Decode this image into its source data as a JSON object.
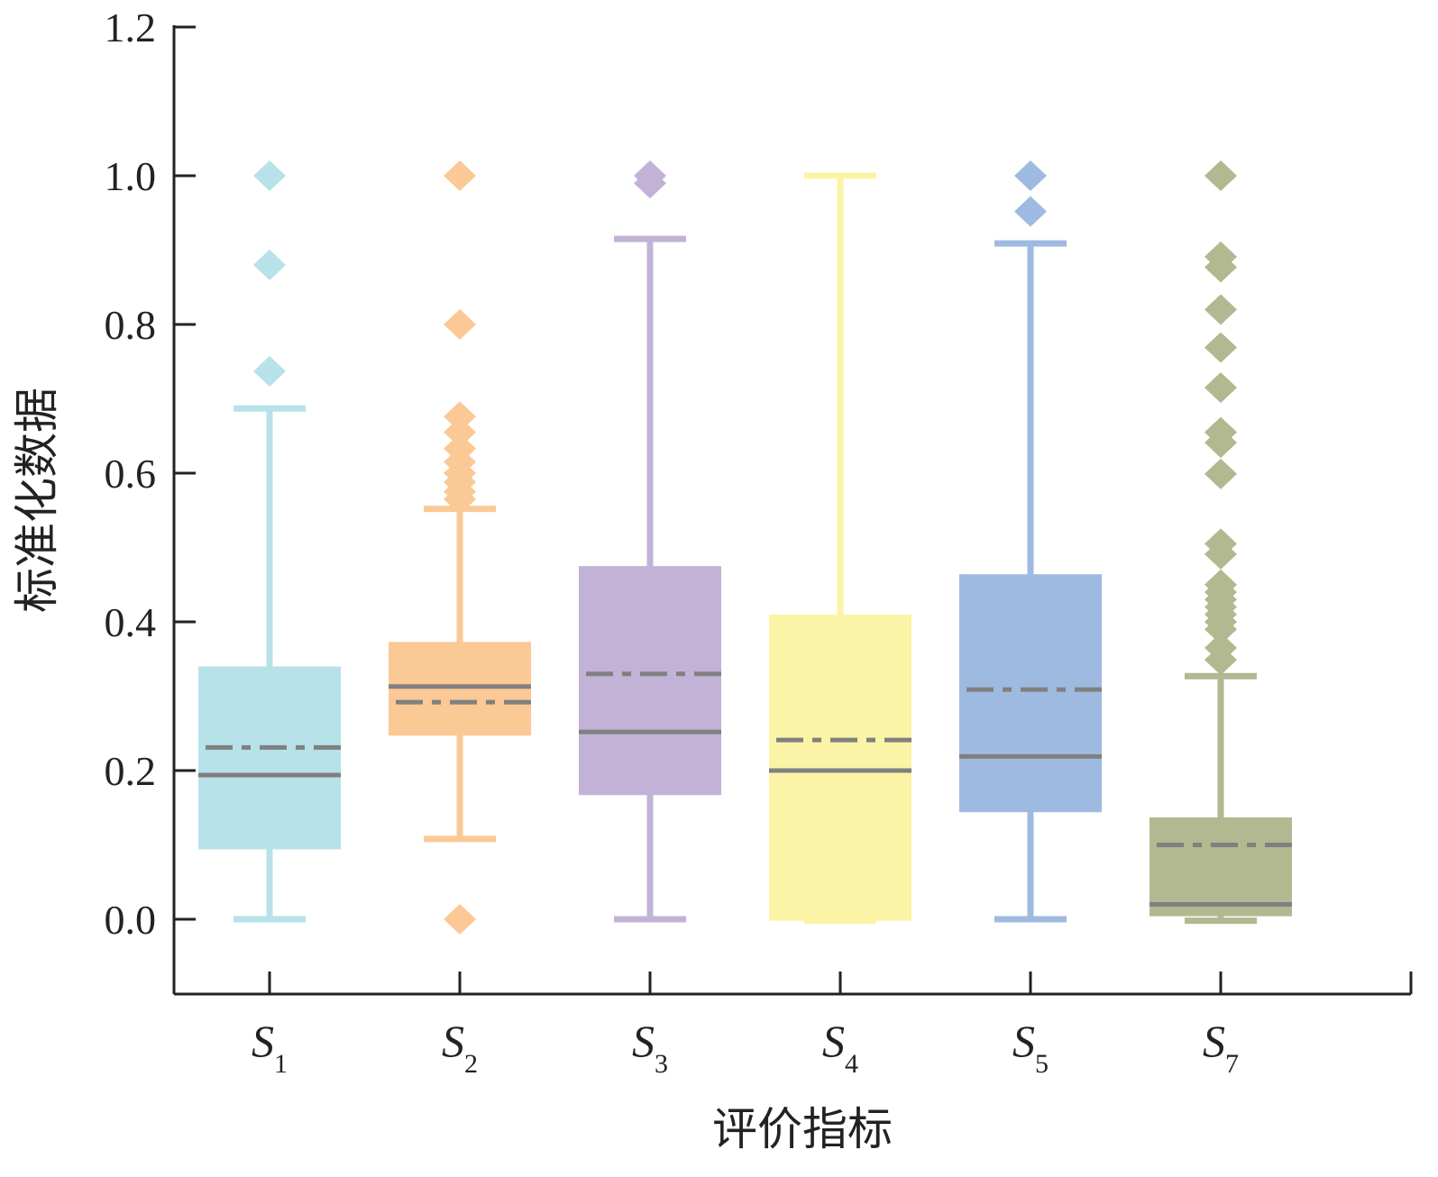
{
  "chart_data": {
    "type": "box",
    "title": "",
    "xlabel": "评价指标",
    "ylabel": "标准化数据",
    "ylim": [
      -0.1,
      1.2
    ],
    "yticks": [
      "0.0",
      "0.2",
      "0.4",
      "0.6",
      "0.8",
      "1.0",
      "1.2"
    ],
    "ytick_values": [
      0,
      0.2,
      0.4,
      0.6,
      0.8,
      1.0,
      1.2
    ],
    "grid": false,
    "median_line_color": "#808080",
    "series": [
      {
        "name": "S",
        "sub": "1",
        "color": "#b7e2e9",
        "whisker_low": 0.0,
        "q1": 0.094,
        "median": 0.194,
        "mean": 0.231,
        "q3": 0.34,
        "whisker_high": 0.687,
        "outliers": [
          1.0,
          0.88,
          0.737
        ]
      },
      {
        "name": "S",
        "sub": "2",
        "color": "#fbc995",
        "whisker_low": 0.108,
        "q1": 0.247,
        "median": 0.313,
        "mean": 0.292,
        "q3": 0.373,
        "whisker_high": 0.552,
        "outliers": [
          0.0,
          1.0,
          0.8,
          0.676,
          0.655,
          0.633,
          0.615,
          0.6,
          0.588,
          0.575,
          0.565
        ]
      },
      {
        "name": "S",
        "sub": "3",
        "color": "#c2b3d6",
        "whisker_low": 0.0,
        "q1": 0.167,
        "median": 0.252,
        "mean": 0.33,
        "q3": 0.475,
        "whisker_high": 0.915,
        "outliers": [
          0.99,
          1.0
        ]
      },
      {
        "name": "S",
        "sub": "4",
        "color": "#fbf4a6",
        "whisker_low": -0.002,
        "q1": -0.002,
        "median": 0.2,
        "mean": 0.241,
        "q3": 0.41,
        "whisker_high": 1.0,
        "outliers": []
      },
      {
        "name": "S",
        "sub": "5",
        "color": "#9fbae1",
        "whisker_low": 0.0,
        "q1": 0.144,
        "median": 0.219,
        "mean": 0.309,
        "q3": 0.464,
        "whisker_high": 0.909,
        "outliers": [
          0.952,
          1.0
        ]
      },
      {
        "name": "S",
        "sub": "7",
        "color": "#b2b88f",
        "whisker_low": -0.002,
        "q1": 0.004,
        "median": 0.02,
        "mean": 0.1,
        "q3": 0.137,
        "whisker_high": 0.327,
        "outliers": [
          1.0,
          0.891,
          0.877,
          0.82,
          0.769,
          0.715,
          0.655,
          0.641,
          0.599,
          0.505,
          0.491,
          0.45,
          0.44,
          0.43,
          0.42,
          0.41,
          0.4,
          0.39,
          0.365,
          0.349
        ]
      }
    ]
  }
}
